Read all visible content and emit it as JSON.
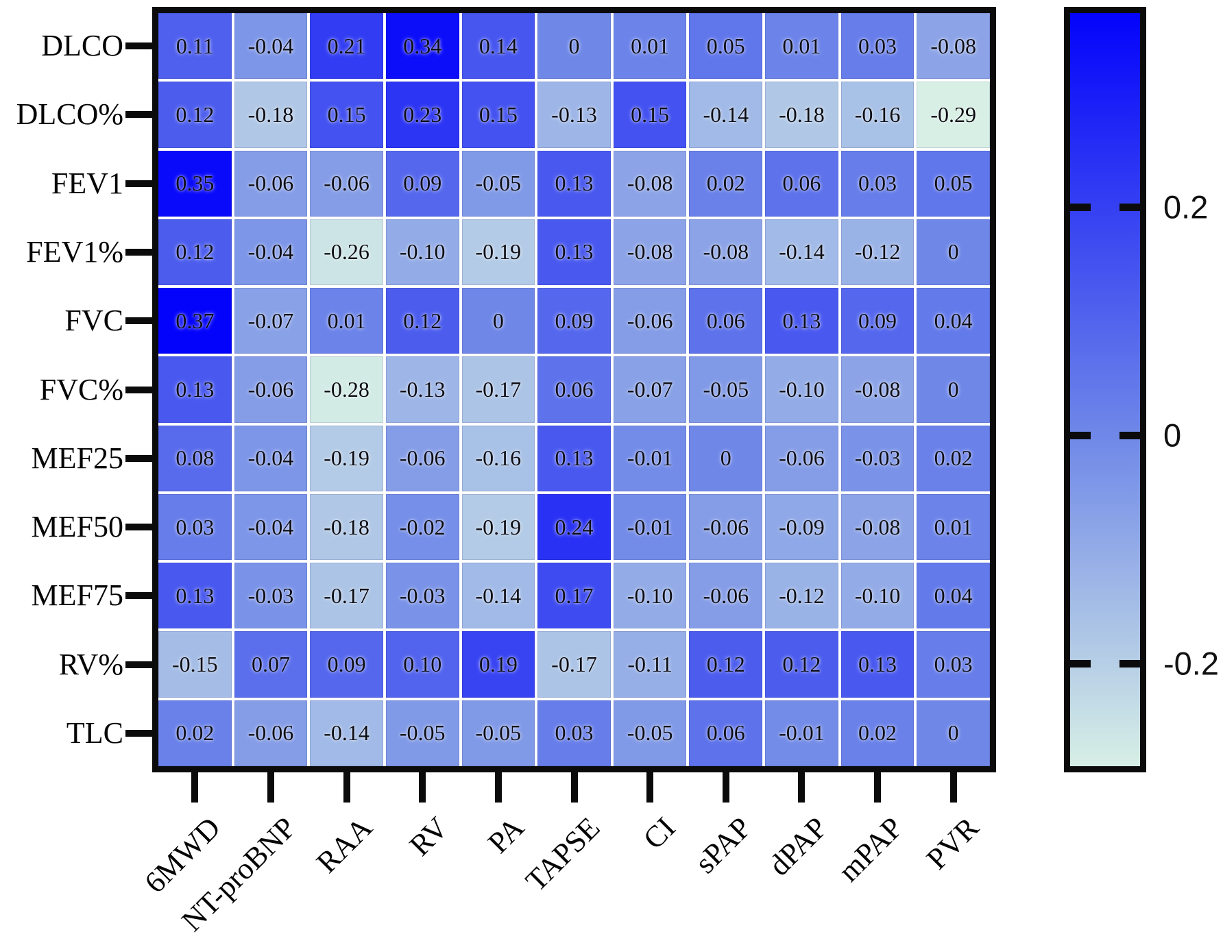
{
  "chart_data": {
    "type": "heatmap",
    "title": "",
    "rows": [
      "DLCO",
      "DLCO%",
      "FEV1",
      "FEV1%",
      "FVC",
      "FVC%",
      "MEF25",
      "MEF50",
      "MEF75",
      "RV%",
      "TLC"
    ],
    "columns": [
      "6MWD",
      "NT-proBNP",
      "RAA",
      "RV",
      "PA",
      "TAPSE",
      "CI",
      "sPAP",
      "dPAP",
      "mPAP",
      "PVR"
    ],
    "values": [
      [
        "0.11",
        "-0.04",
        "0.21",
        "0.34",
        "0.14",
        "0",
        "0.01",
        "0.05",
        "0.01",
        "0.03",
        "-0.08"
      ],
      [
        "0.12",
        "-0.18",
        "0.15",
        "0.23",
        "0.15",
        "-0.13",
        "0.15",
        "-0.14",
        "-0.18",
        "-0.16",
        "-0.29"
      ],
      [
        "0.35",
        "-0.06",
        "-0.06",
        "0.09",
        "-0.05",
        "0.13",
        "-0.08",
        "0.02",
        "0.06",
        "0.03",
        "0.05"
      ],
      [
        "0.12",
        "-0.04",
        "-0.26",
        "-0.10",
        "-0.19",
        "0.13",
        "-0.08",
        "-0.08",
        "-0.14",
        "-0.12",
        "0"
      ],
      [
        "0.37",
        "-0.07",
        "0.01",
        "0.12",
        "0",
        "0.09",
        "-0.06",
        "0.06",
        "0.13",
        "0.09",
        "0.04"
      ],
      [
        "0.13",
        "-0.06",
        "-0.28",
        "-0.13",
        "-0.17",
        "0.06",
        "-0.07",
        "-0.05",
        "-0.10",
        "-0.08",
        "0"
      ],
      [
        "0.08",
        "-0.04",
        "-0.19",
        "-0.06",
        "-0.16",
        "0.13",
        "-0.01",
        "0",
        "-0.06",
        "-0.03",
        "0.02"
      ],
      [
        "0.03",
        "-0.04",
        "-0.18",
        "-0.02",
        "-0.19",
        "0.24",
        "-0.01",
        "-0.06",
        "-0.09",
        "-0.08",
        "0.01"
      ],
      [
        "0.13",
        "-0.03",
        "-0.17",
        "-0.03",
        "-0.14",
        "0.17",
        "-0.10",
        "-0.06",
        "-0.12",
        "-0.10",
        "0.04"
      ],
      [
        "-0.15",
        "0.07",
        "0.09",
        "0.10",
        "0.19",
        "-0.17",
        "-0.11",
        "0.12",
        "0.12",
        "0.13",
        "0.03"
      ],
      [
        "0.02",
        "-0.06",
        "-0.14",
        "-0.05",
        "-0.05",
        "0.03",
        "-0.05",
        "0.06",
        "-0.01",
        "0.02",
        "0"
      ]
    ],
    "colorbar": {
      "tick_labels": [
        "0.2",
        "0",
        "-0.2"
      ],
      "tick_values": [
        0.2,
        0,
        -0.2
      ],
      "vmin": -0.29,
      "vmax": 0.37,
      "min_color": "#d7efe5",
      "mid_color": "#6f88e8",
      "max_color": "#0303fb"
    },
    "grid": true,
    "legend_position": "right",
    "xlabel": "",
    "ylabel": ""
  }
}
